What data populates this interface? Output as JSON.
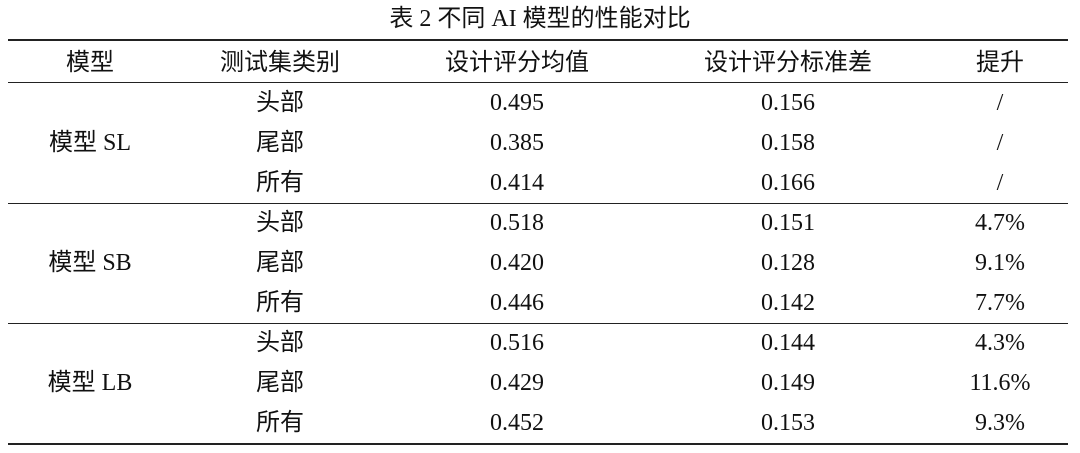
{
  "header": {
    "title": "表 2  不同 AI 模型的性能对比"
  },
  "table": {
    "columns": [
      "模型",
      "测试集类别",
      "设计评分均值",
      "设计评分标准差",
      "提升"
    ],
    "groups": [
      {
        "model": "模型 SL",
        "rows": [
          [
            "头部",
            "0.495",
            "0.156",
            "/"
          ],
          [
            "尾部",
            "0.385",
            "0.158",
            "/"
          ],
          [
            "所有",
            "0.414",
            "0.166",
            "/"
          ]
        ]
      },
      {
        "model": "模型 SB",
        "rows": [
          [
            "头部",
            "0.518",
            "0.151",
            "4.7%"
          ],
          [
            "尾部",
            "0.420",
            "0.128",
            "9.1%"
          ],
          [
            "所有",
            "0.446",
            "0.142",
            "7.7%"
          ]
        ]
      },
      {
        "model": "模型 LB",
        "rows": [
          [
            "头部",
            "0.516",
            "0.144",
            "4.3%"
          ],
          [
            "尾部",
            "0.429",
            "0.149",
            "11.6%"
          ],
          [
            "所有",
            "0.452",
            "0.153",
            "9.3%"
          ]
        ]
      }
    ]
  }
}
